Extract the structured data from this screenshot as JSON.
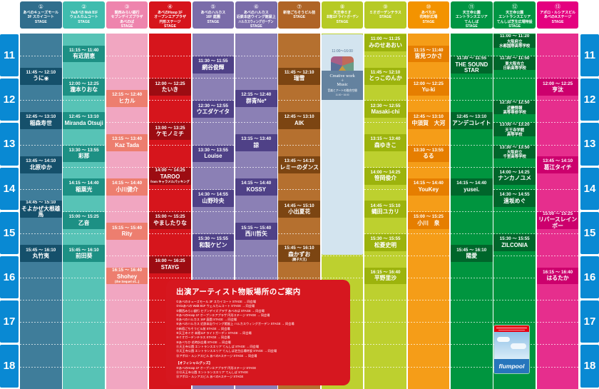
{
  "accent_colors": {
    "rail_blue": "#0989d3",
    "info_red": "#d6171f",
    "flumpool_blue": "#2776bc"
  },
  "time_rail": {
    "hours": [
      "11",
      "12",
      "13",
      "14",
      "15",
      "16",
      "17",
      "18"
    ]
  },
  "columns": [
    {
      "num": "①",
      "name_lines": [
        "あべのキューズモール",
        "3F スカイコート",
        "STAGE"
      ],
      "colors": {
        "header": "#306e8d",
        "strip": "#3f7d9a",
        "act": "#15506b"
      },
      "acts": [
        {
          "s": "11:45",
          "e": "12:10",
          "n": "うに◉"
        },
        {
          "s": "12:45",
          "e": "13:10",
          "n": "稲森寿世"
        },
        {
          "s": "13:45",
          "e": "14:10",
          "n": "北原ゆか"
        },
        {
          "s": "14:45",
          "e": "15:10",
          "n": "そよかぜ大根雄馬"
        },
        {
          "s": "15:45",
          "e": "16:10",
          "n": "丸竹夷"
        }
      ]
    },
    {
      "num": "②",
      "name_lines": [
        "Viaあべの Walk B1F",
        "ウェルカムコート",
        "STAGE"
      ],
      "colors": {
        "header": "#3fbcae",
        "strip": "#57c3b6",
        "act": "#1d9084"
      },
      "acts": [
        {
          "s": "11:15",
          "e": "11:40",
          "n": "有近朋恵"
        },
        {
          "s": "12:00",
          "e": "12:25",
          "n": "瀧本りおな"
        },
        {
          "s": "12:45",
          "e": "13:10",
          "n": "Miranda Otsuji"
        },
        {
          "s": "13:30",
          "e": "13:55",
          "n": "彩那"
        },
        {
          "s": "14:15",
          "e": "14:40",
          "n": "稲葉光"
        },
        {
          "s": "15:00",
          "e": "15:25",
          "n": "乙音"
        },
        {
          "s": "15:45",
          "e": "16:10",
          "n": "前田葵"
        }
      ]
    },
    {
      "num": "③",
      "name_lines": [
        "関西みらい銀行",
        "セブンデイズプラザ",
        "あべのば",
        "STAGE"
      ],
      "colors": {
        "header": "#ee84ad",
        "strip": "#f1a6c1",
        "act": "#ed7e6f"
      },
      "acts": [
        {
          "s": "12:15",
          "e": "12:40",
          "n": "ヒカル"
        },
        {
          "s": "13:15",
          "e": "13:40",
          "n": "Kaz Tada"
        },
        {
          "s": "14:15",
          "e": "14:40",
          "n": "小川健介"
        },
        {
          "s": "15:15",
          "e": "15:40",
          "n": "Rity"
        },
        {
          "s": "16:15",
          "e": "16:40",
          "n": "Shohey",
          "sub": "(the Sequel of...)"
        }
      ]
    },
    {
      "num": "④",
      "name_lines": [
        "あべのHoop 1F",
        "オープンエアプラザ",
        "円形ステージ",
        "STAGE"
      ],
      "colors": {
        "header": "#d6151c",
        "strip": "#d6151c",
        "act": "#9c0c12"
      },
      "acts": [
        {
          "s": "12:00",
          "e": "12:25",
          "n": "たいき"
        },
        {
          "s": "13:00",
          "e": "13:25",
          "n": "ケモノミチ"
        },
        {
          "s": "14:00",
          "e": "14:25",
          "n": "TAROO",
          "sub": "from キャラメルパッキング"
        },
        {
          "s": "15:00",
          "e": "15:25",
          "n": "やましたりな"
        },
        {
          "s": "16:00",
          "e": "16:25",
          "n": "STAYG"
        }
      ]
    },
    {
      "num": "⑤",
      "name_lines": [
        "あべのハルカス",
        "16F 庭園",
        "STAGE"
      ],
      "colors": {
        "header": "#7a6ca9",
        "strip": "#8b80b5",
        "act": "#4f4187"
      },
      "acts": [
        {
          "s": "11:30",
          "e": "11:55",
          "n": "網谷俊輝"
        },
        {
          "s": "12:30",
          "e": "12:55",
          "n": "ウエダケイタ"
        },
        {
          "s": "13:30",
          "e": "13:55",
          "n": "Louise"
        },
        {
          "s": "14:30",
          "e": "14:55",
          "n": "山野玲央"
        },
        {
          "s": "15:30",
          "e": "15:55",
          "n": "和製ケビン"
        }
      ]
    },
    {
      "num": "⑥",
      "name_lines": [
        "あべのハルカス",
        "近鉄本店ウイング館屋上",
        "ハルカスウィングガーデン",
        "STAGE"
      ],
      "colors": {
        "header": "#7a6ca9",
        "strip": "#8b80b5",
        "act": "#4f4187"
      },
      "acts": [
        {
          "s": "12:15",
          "e": "12:40",
          "n": "群青Ne*"
        },
        {
          "s": "13:15",
          "e": "13:40",
          "n": "諒"
        },
        {
          "s": "14:15",
          "e": "14:40",
          "n": "KOSSY"
        },
        {
          "s": "15:15",
          "e": "15:40",
          "n": "西川哲矢"
        }
      ]
    },
    {
      "num": "⑦",
      "name_lines": [
        "新宿ごちそうビル前",
        "STAGE"
      ],
      "colors": {
        "header": "#af6426",
        "strip": "#b5702f",
        "act": "#7c4512"
      },
      "acts": [
        {
          "s": "11:45",
          "e": "12:10",
          "n": "瑞雪"
        },
        {
          "s": "12:45",
          "e": "13:10",
          "n": "AIK"
        },
        {
          "s": "13:45",
          "e": "14:10",
          "n": "レミーのダンス"
        },
        {
          "s": "14:45",
          "e": "15:10",
          "n": "小出夏花"
        },
        {
          "s": "15:45",
          "e": "16:10",
          "n": "森かずお",
          "sub": "(親子大王)"
        }
      ]
    },
    {
      "num": "⑧",
      "name_lines": [
        "天王寺ミオ",
        "本館11F ライトガーデン",
        "STAGE"
      ],
      "colors": {
        "header": "#b6ca25",
        "strip": "#bdd02f",
        "act": "#9cb30d"
      },
      "acts": []
    },
    {
      "num": "⑨",
      "name_lines": [
        "ミオガーデンテラス",
        "STAGE"
      ],
      "colors": {
        "header": "#b6ca25",
        "strip": "#bdd02f",
        "act": "#9cb30d"
      },
      "acts": [
        {
          "s": "11:00",
          "e": "11:25",
          "n": "みのせあおい"
        },
        {
          "s": "11:45",
          "e": "12:10",
          "n": "とっこのんか"
        },
        {
          "s": "12:30",
          "e": "12:55",
          "n": "Masaki-chi"
        },
        {
          "s": "13:15",
          "e": "13:40",
          "n": "森ゆきこ"
        },
        {
          "s": "14:00",
          "e": "14:25",
          "n": "笹岡俊介"
        },
        {
          "s": "14:45",
          "e": "15:10",
          "n": "蝿田ユカリ"
        },
        {
          "s": "15:30",
          "e": "15:55",
          "n": "松菱史明"
        },
        {
          "s": "16:15",
          "e": "16:40",
          "n": "平野里沙"
        }
      ]
    },
    {
      "num": "⑩",
      "name_lines": [
        "あべちか",
        "花時計広場",
        "STAGE"
      ],
      "colors": {
        "header": "#f39300",
        "strip": "#f59d18",
        "act": "#e67e00"
      },
      "acts": [
        {
          "s": "11:15",
          "e": "11:40",
          "n": "皆見つかさ"
        },
        {
          "s": "12:00",
          "e": "12:25",
          "n": "Yu-ki"
        },
        {
          "s": "12:45",
          "e": "13:10",
          "n": "中須賀　大河"
        },
        {
          "s": "13:30",
          "e": "13:55",
          "n": "るる"
        },
        {
          "s": "14:15",
          "e": "14:40",
          "n": "YouKey"
        },
        {
          "s": "15:00",
          "e": "15:25",
          "n": "小川　泉"
        }
      ]
    },
    {
      "num": "⑪",
      "name_lines": [
        "天王寺公園",
        "エントランスエリア",
        "てんしば",
        "STAGE"
      ],
      "colors": {
        "header": "#009543",
        "strip": "#00953f",
        "act": "#00662b"
      },
      "acts": [
        {
          "s": "11:30",
          "e": "11:55",
          "n": "THE SOUND STAR"
        },
        {
          "s": "12:45",
          "e": "13:10",
          "n": "アンデコレイト"
        },
        {
          "s": "14:15",
          "e": "14:40",
          "n": "yusei."
        },
        {
          "s": "15:45",
          "e": "16:10",
          "n": "陽愛"
        }
      ]
    },
    {
      "num": "⑫",
      "name_lines": [
        "天王寺公園",
        "エントランスエリア",
        "てんしば芝生広場特設",
        "STAGE"
      ],
      "colors": {
        "header": "#009543",
        "strip": "#00953f",
        "act": "#00662b"
      },
      "acts": [
        {
          "s": "11:00",
          "e": "11:20",
          "n": "大阪府立",
          "sub": "水都国際高等学校",
          "small": true
        },
        {
          "s": "11:30",
          "e": "11:50",
          "n": "東大阪市立",
          "sub": "日新高等学校",
          "small": true
        },
        {
          "s": "12:30",
          "e": "12:50",
          "n": "近畿情報",
          "sub": "高等専修学校",
          "small": true
        },
        {
          "s": "13:00",
          "e": "13:20",
          "n": "天王寺学館",
          "sub": "高等学校",
          "small": true
        },
        {
          "s": "13:30",
          "e": "13:50",
          "n": "大阪府立",
          "sub": "千里高等学校",
          "small": true
        },
        {
          "s": "14:00",
          "e": "14:25",
          "n": "ナンカノユメ"
        },
        {
          "s": "14:30",
          "e": "14:55",
          "n": "遠坂めぐ"
        },
        {
          "s": "15:30",
          "e": "15:55",
          "n": "ZILCONIA"
        }
      ]
    },
    {
      "num": "⑬",
      "name_lines": [
        "アポロ・ルシアスビル",
        "あべのAステージ",
        "STAGE"
      ],
      "colors": {
        "header": "#e4017f",
        "strip": "#e62e8d",
        "act": "#cc006d"
      },
      "acts": [
        {
          "s": "12:00",
          "e": "12:25",
          "n": "亨汰"
        },
        {
          "s": "13:45",
          "e": "14:10",
          "n": "葛江タイチ"
        },
        {
          "s": "15:00",
          "e": "15:25",
          "n": "リバースレインボー"
        },
        {
          "s": "16:15",
          "e": "16:40",
          "n": "はるたか"
        }
      ]
    }
  ],
  "creative_cell": {
    "column_index": 7,
    "start": "11:00",
    "end": "16:00",
    "time_label": "11:00～16:00",
    "line1": "Creative work",
    "plus": "＋",
    "line2": "Music",
    "line3": "音楽とアートの融合空間",
    "line4": "11:00－16:00"
  },
  "info_box": {
    "title": "出演アーティスト物販場所のご案内",
    "lines": [
      "①あべのキューズモール 3F スカイコート STAGE → 同会場",
      "②Viaあべの Walk B1F ウェルカムコート STAGE → 同会場",
      "③関西みらい銀行 セブンデイズプラザ あべのば STAGE → 同会場",
      "④あべのHoop 1F オープンエアプラザ 円形ステージ STAGE → 同会場",
      "⑤あべのハルカス 16F 庭園 STAGE → 同会場",
      "⑥あべのハルカス 近鉄本店ウイング館屋上 ハルカスウィングガーデン STAGE → 同会場",
      "⑦新宿ごちそうビル前 STAGE → 同会場",
      "⑧天王寺ミオ 本館11F ライトガーデン STAGE → 同会場",
      "⑨ミオガーデンテラス STAGE → 同会場",
      "⑩あべちか 花時計広場 STAGE → 同会場",
      "⑪天王寺公園 エントランスエリア てんしば STAGE → 同会場",
      "⑫天王寺公園 エントランスエリア てんしば芝生広場特設 STAGE → 同会場",
      "⑬アポロ・ルシアスビル あべのAステージ STAGE → 同会場"
    ],
    "section": "【オフィシャルグッズ】",
    "lines2": [
      "④あべのHoop 1F オープンエアプラザ 円形ステージ STAGE",
      "⑪⑫天王寺公園 エントランスエリア てんしば STAGE",
      "⑬アポロ・ルシアスビル あべのAステージ STAGE"
    ]
  },
  "flumpool": {
    "label": "flumpool"
  }
}
